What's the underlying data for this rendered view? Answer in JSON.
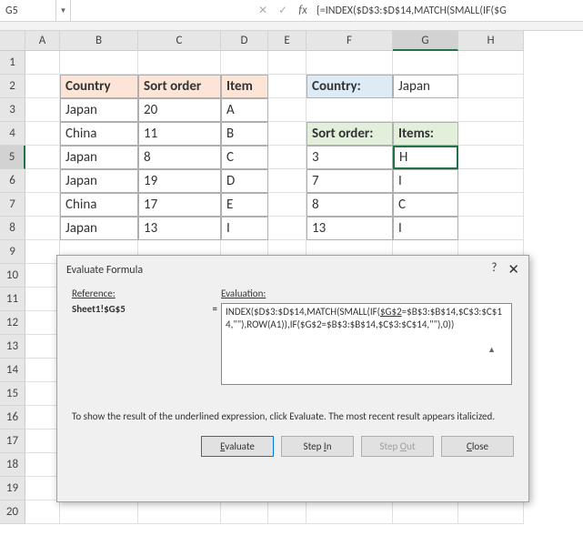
{
  "nameBox": "G5",
  "formula": "{=INDEX($D$3:$D$14,MATCH(SMALL(IF($G",
  "columns": [
    "A",
    "B",
    "C",
    "D",
    "E",
    "F",
    "G",
    "H"
  ],
  "rows": [
    "1",
    "2",
    "3",
    "4",
    "5",
    "6",
    "7",
    "8",
    "9",
    "10",
    "11",
    "12",
    "13",
    "14",
    "15",
    "16",
    "17",
    "18",
    "19",
    "20"
  ],
  "selectedCol": 6,
  "selectedRow": 4,
  "leftTable": {
    "headers": [
      "Country",
      "Sort order",
      "Item"
    ],
    "rows": [
      [
        "Japan",
        "20",
        "A"
      ],
      [
        "China",
        "11",
        "B"
      ],
      [
        "Japan",
        "8",
        "C"
      ],
      [
        "Japan",
        "19",
        "D"
      ],
      [
        "China",
        "17",
        "E"
      ],
      [
        "Japan",
        "13",
        "I"
      ]
    ]
  },
  "rightTop": {
    "label": "Country:",
    "value": "Japan"
  },
  "rightTable": {
    "headers": [
      "Sort order:",
      "Items:"
    ],
    "rows": [
      [
        "3",
        "H"
      ],
      [
        "7",
        "I"
      ],
      [
        "8",
        "C"
      ],
      [
        "13",
        "I"
      ]
    ]
  },
  "dialog": {
    "title": "Evaluate Formula",
    "refLabel": "Reference:",
    "evalLabel": "Evaluation:",
    "reference": "Sheet1!$G$5",
    "evalPrefix": "INDEX($D$3:$D$14,MATCH(SMALL(IF(",
    "evalUnderlined": "$G$2",
    "evalSuffix": "=$B$3:$B$14,$C$3:$C$14,\"\"),ROW(A1)),IF($G$2=$B$3:$B$14,$C$3:$C$14,\"\"),0))",
    "hint": "To show the result of the underlined expression, click Evaluate.  The most recent result appears italicized.",
    "buttons": {
      "evaluate": "Evaluate",
      "stepIn": "Step In",
      "stepOut": "Step Out",
      "close": "Close"
    }
  },
  "colors": {
    "orange": "#fce4d6",
    "blue": "#ddebf7",
    "green": "#e2efda",
    "selBorder": "#217346"
  }
}
